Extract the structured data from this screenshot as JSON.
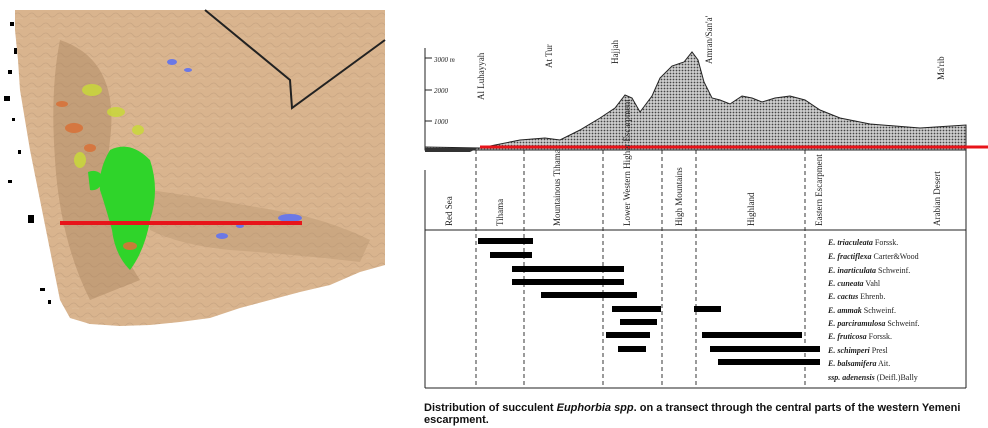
{
  "transect": {
    "elevation_labels": [
      "3000 m",
      "2000",
      "1000"
    ],
    "towns": [
      "Al Luhayyah",
      "At Tur",
      "Hajjah",
      "Amran/San'a'",
      "Ma'rib"
    ],
    "zones": [
      "Red Sea",
      "Tihama",
      "Mountainous Tihama",
      "Lower Western Higher Escarpment",
      "High Mountains",
      "Highland",
      "Eastern Escarpment",
      "Arabian Desert"
    ],
    "species": [
      {
        "name": "E. triaculeata",
        "author": "Forssk."
      },
      {
        "name": "E. fractiflexa",
        "author": "Carter&Wood"
      },
      {
        "name": "E. inarticulata",
        "author": "Schweinf."
      },
      {
        "name": "E. cuneata",
        "author": "Vahl"
      },
      {
        "name": "E. cactus",
        "author": "Ehrenb."
      },
      {
        "name": "E. ammak",
        "author": "Schweinf."
      },
      {
        "name": "E. parciramulosa",
        "author": "Schweinf."
      },
      {
        "name": "E. fruticosa",
        "author": "Forssk."
      },
      {
        "name": "E. schimperi",
        "author": "Presl"
      },
      {
        "name": "E. balsamifera",
        "author": "Ait."
      },
      {
        "name": "ssp. adenensis",
        "author": "(Deifl.)Bally"
      }
    ]
  },
  "caption": {
    "part1": "Distribution of succulent ",
    "italic": "Euphorbia spp",
    "part2": ". on a transect through the central parts of the western  Yemeni escarpment."
  }
}
